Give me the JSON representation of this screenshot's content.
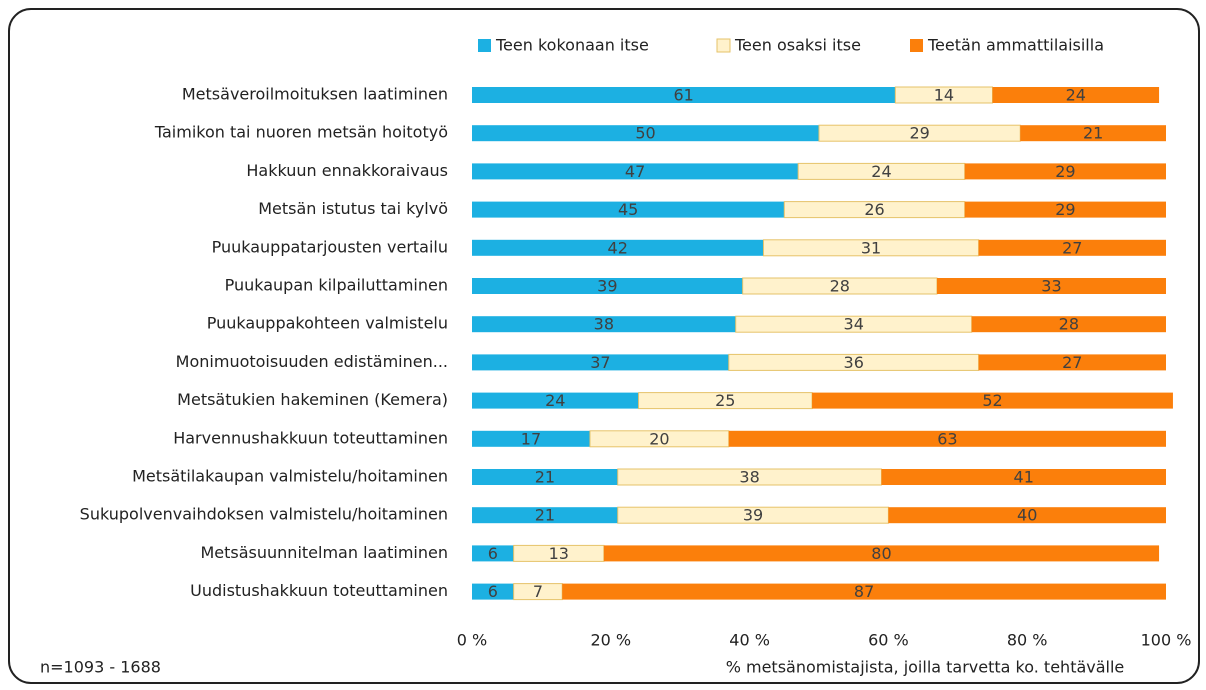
{
  "chart_data": {
    "type": "stacked_bar_horizontal",
    "categories": [
      "Metsäveroilmoituksen laatiminen",
      "Taimikon tai nuoren metsän hoitotyö",
      "Hakkuun ennakkoraivaus",
      "Metsän istutus tai kylvö",
      "Puukauppatarjousten vertailu",
      "Puukaupan kilpailuttaminen",
      "Puukauppakohteen valmistelu",
      "Monimuotoisuuden edistäminen...",
      "Metsätukien hakeminen (Kemera)",
      "Harvennushakkuun toteuttaminen",
      "Metsätilakaupan valmistelu/hoitaminen",
      "Sukupolvenvaihdoksen valmistelu/hoitaminen",
      "Metsäsuunnitelman laatiminen",
      "Uudistushakkuun toteuttaminen"
    ],
    "series": [
      {
        "name": "Teen kokonaan itse",
        "color": "#1cb0e2",
        "values": [
          61,
          50,
          47,
          45,
          42,
          39,
          38,
          37,
          24,
          17,
          21,
          21,
          6,
          6
        ]
      },
      {
        "name": "Teen osaksi itse",
        "color": "#fff2cc",
        "values": [
          14,
          29,
          24,
          26,
          31,
          28,
          34,
          36,
          25,
          20,
          38,
          39,
          13,
          7
        ]
      },
      {
        "name": "Teetän ammattilaisilla",
        "color": "#fb7f0b",
        "values": [
          24,
          21,
          29,
          29,
          27,
          33,
          28,
          27,
          52,
          63,
          41,
          40,
          80,
          87
        ]
      }
    ],
    "xlim": [
      0,
      100
    ],
    "xticks": [
      {
        "value": 0,
        "label": "0 %"
      },
      {
        "value": 20,
        "label": "20 %"
      },
      {
        "value": 40,
        "label": "40 %"
      },
      {
        "value": 60,
        "label": "60 %"
      },
      {
        "value": 80,
        "label": "80 %"
      },
      {
        "value": 100,
        "label": "100 %"
      }
    ],
    "xlabel": "% metsänomistajista, joilla tarvetta ko. tehtävälle",
    "note": "n=1093 - 1688",
    "legend": "top"
  }
}
